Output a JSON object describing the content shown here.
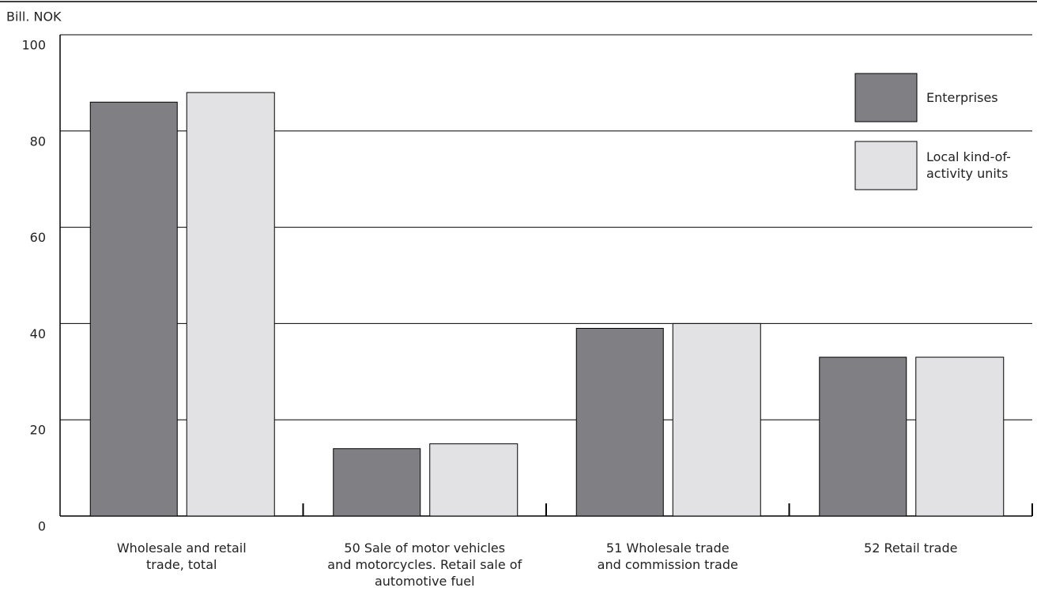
{
  "chart_data": {
    "type": "bar",
    "y_label": "Bill. NOK",
    "categories": [
      "Wholesale and retail\ntrade, total",
      "50 Sale of motor vehicles\nand motorcycles. Retail sale of\nautomotive fuel",
      "51 Wholesale trade\nand commission trade",
      "52 Retail trade"
    ],
    "series": [
      {
        "name": "Enterprises",
        "color": "#808084",
        "values": [
          86,
          14,
          39,
          33
        ]
      },
      {
        "name": "Local kind-of-activity units",
        "color": "#e2e2e4",
        "values": [
          88,
          15,
          40,
          33
        ]
      }
    ],
    "ylim": [
      0,
      100
    ],
    "yticks": [
      0,
      20,
      40,
      60,
      80,
      100
    ],
    "grid": true,
    "legend": "upper right"
  }
}
